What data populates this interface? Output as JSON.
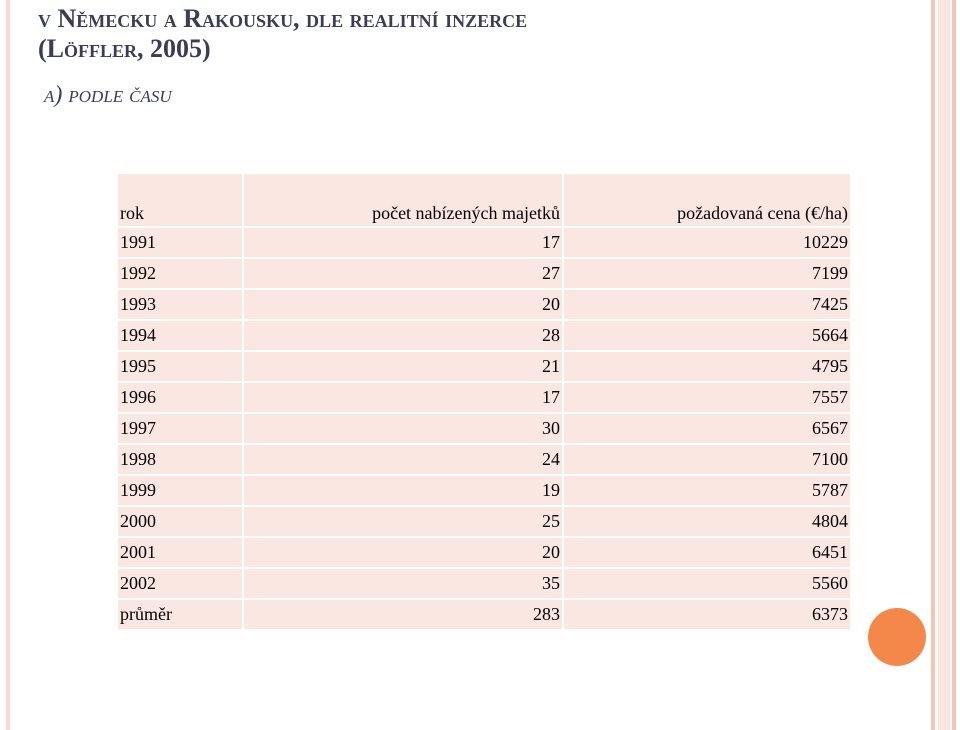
{
  "slide": {
    "title_line1": "v Německu a Rakousku, dle realitní inzerce",
    "title_line2": "(Löffler, 2005)",
    "subtitle": "a) podle času"
  },
  "table": {
    "headers": [
      "rok",
      "počet nabízených majetků",
      "požadovaná cena (€/ha)"
    ],
    "rows": [
      [
        "1991",
        "17",
        "10229"
      ],
      [
        "1992",
        "27",
        "7199"
      ],
      [
        "1993",
        "20",
        "7425"
      ],
      [
        "1994",
        "28",
        "5664"
      ],
      [
        "1995",
        "21",
        "4795"
      ],
      [
        "1996",
        "17",
        "7557"
      ],
      [
        "1997",
        "30",
        "6567"
      ],
      [
        "1998",
        "24",
        "7100"
      ],
      [
        "1999",
        "19",
        "5787"
      ],
      [
        "2000",
        "25",
        "4804"
      ],
      [
        "2001",
        "20",
        "6451"
      ],
      [
        "2002",
        "35",
        "5560"
      ],
      [
        "průměr",
        "283",
        "6373"
      ]
    ]
  },
  "colors": {
    "title": "#3b3d57",
    "table_fill": "#fbe7e1",
    "accent_orange": "#f4884a",
    "decor_pink": "#f4c4b6"
  }
}
